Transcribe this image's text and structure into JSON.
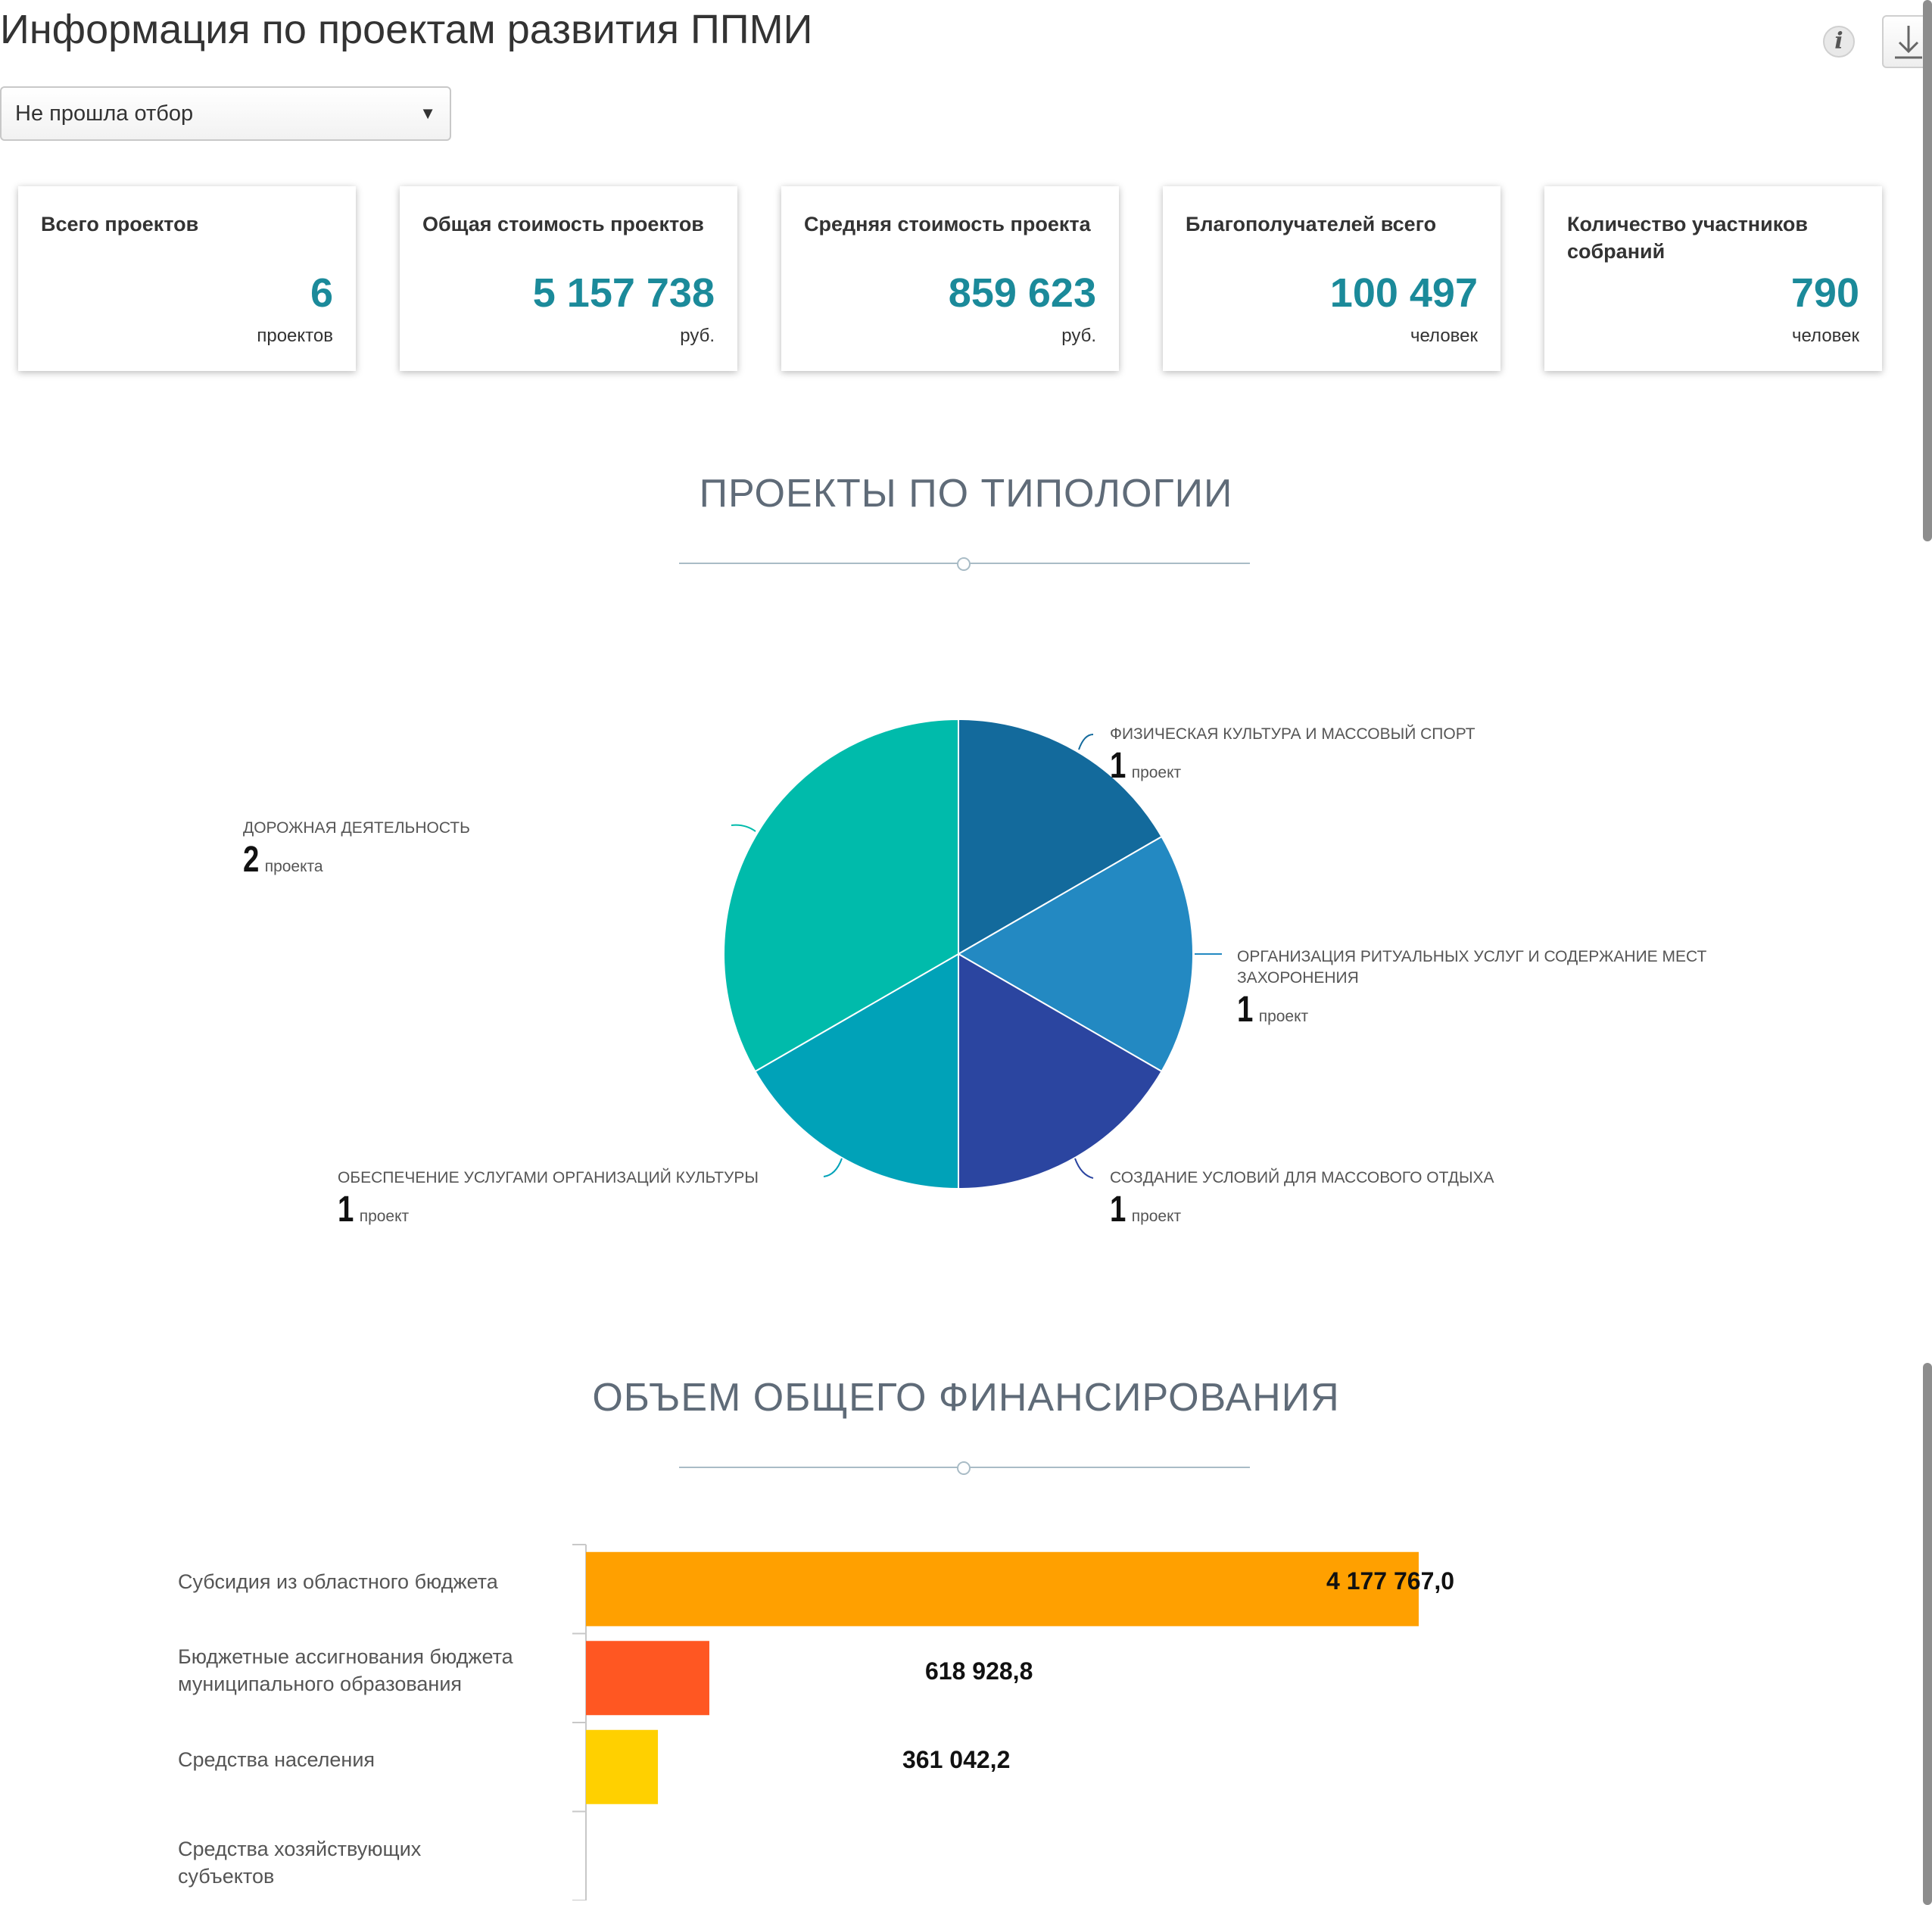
{
  "header": {
    "title": "Информация по проектам развития ППМИ",
    "info_icon": "info-icon",
    "download_icon": "download-icon"
  },
  "filter": {
    "selected": "Не прошла отбор"
  },
  "kpis": [
    {
      "label": "Всего проектов",
      "value": "6",
      "unit": "проектов"
    },
    {
      "label": "Общая стоимость проектов",
      "value": "5 157 738",
      "unit": "руб."
    },
    {
      "label": "Средняя стоимость проекта",
      "value": "859 623",
      "unit": "руб."
    },
    {
      "label": "Благополучателей всего",
      "value": "100 497",
      "unit": "человек"
    },
    {
      "label": "Количество участников собраний",
      "value": "790",
      "unit": "человек"
    }
  ],
  "typology": {
    "title": "ПРОЕКТЫ ПО ТИПОЛОГИИ"
  },
  "financing": {
    "title": "ОБЪЕМ ОБЩЕГО ФИНАНСИРОВАНИЯ"
  },
  "chart_data": [
    {
      "type": "pie",
      "title": "ПРОЕКТЫ ПО ТИПОЛОГИИ",
      "slices": [
        {
          "label": "ФИЗИЧЕСКАЯ КУЛЬТУРА И МАССОВЫЙ СПОРТ",
          "value": 1,
          "value_label": "1",
          "unit": "проект",
          "color": "#136a9c"
        },
        {
          "label": "ОРГАНИЗАЦИЯ РИТУАЛЬНЫХ УСЛУГ И СОДЕРЖАНИЕ МЕСТ ЗАХОРОНЕНИЯ",
          "value": 1,
          "value_label": "1",
          "unit": "проект",
          "color": "#2389c2"
        },
        {
          "label": "СОЗДАНИЕ УСЛОВИЙ ДЛЯ МАССОВОГО ОТДЫХА",
          "value": 1,
          "value_label": "1",
          "unit": "проект",
          "color": "#2b45a0"
        },
        {
          "label": "ОБЕСПЕЧЕНИЕ УСЛУГАМИ ОРГАНИЗАЦИЙ КУЛЬТУРЫ",
          "value": 1,
          "value_label": "1",
          "unit": "проект",
          "color": "#00a2b8"
        },
        {
          "label": "ДОРОЖНАЯ ДЕЯТЕЛЬНОСТЬ",
          "value": 2,
          "value_label": "2",
          "unit": "проекта",
          "color": "#00bbab"
        }
      ]
    },
    {
      "type": "bar",
      "orientation": "horizontal",
      "title": "ОБЪЕМ ОБЩЕГО ФИНАНСИРОВАНИЯ",
      "categories": [
        "Субсидия из областного бюджета",
        "Бюджетные ассигнования бюджета муниципального образования",
        "Средства населения",
        "Средства хозяйствующих субъектов"
      ],
      "values": [
        4177767.0,
        618928.8,
        361042.2,
        0
      ],
      "value_labels": [
        "4 177 767,0",
        "618 928,8",
        "361 042,2",
        ""
      ],
      "colors": [
        "#ffa000",
        "#ff5722",
        "#ffd000",
        "#cccccc"
      ],
      "xlim": [
        0,
        4500000
      ]
    }
  ]
}
